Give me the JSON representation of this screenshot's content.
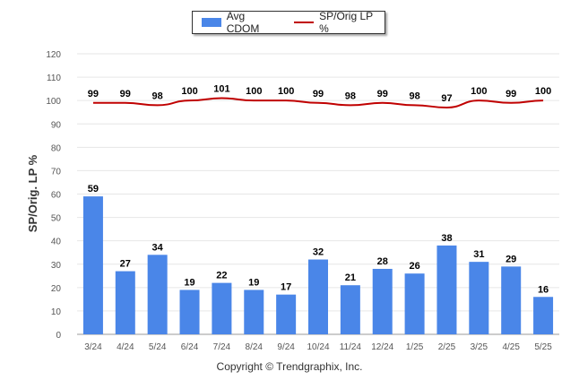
{
  "chart_data": {
    "type": "bar",
    "categories": [
      "3/24",
      "4/24",
      "5/24",
      "6/24",
      "7/24",
      "8/24",
      "9/24",
      "10/24",
      "11/24",
      "12/24",
      "1/25",
      "2/25",
      "3/25",
      "4/25",
      "5/25"
    ],
    "series": [
      {
        "name": "Avg CDOM",
        "type": "bar",
        "values": [
          59,
          27,
          34,
          19,
          22,
          19,
          17,
          32,
          21,
          28,
          26,
          38,
          31,
          29,
          16
        ]
      },
      {
        "name": "SP/Orig LP %",
        "type": "line",
        "values": [
          99,
          99,
          98,
          100,
          101,
          100,
          100,
          99,
          98,
          99,
          98,
          97,
          100,
          99,
          100
        ]
      }
    ],
    "ylabel": "SP/Orig. LP %",
    "xlabel": "",
    "ylim": [
      0,
      120
    ],
    "yticks": [
      0,
      10,
      20,
      30,
      40,
      50,
      60,
      70,
      80,
      90,
      100,
      110,
      120
    ],
    "grid": true,
    "legend_position": "top-center",
    "colors": {
      "bar": "#4a86e8",
      "line": "#c00000"
    }
  },
  "copyright": "Copyright © Trendgraphix, Inc."
}
